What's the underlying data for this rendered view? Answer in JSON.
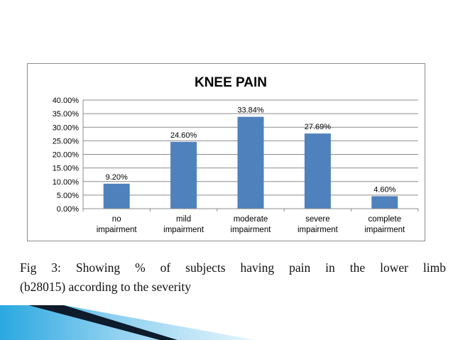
{
  "chart_data": {
    "type": "bar",
    "title": "KNEE PAIN",
    "categories": [
      [
        "no",
        "impairment"
      ],
      [
        "mild",
        "impairment"
      ],
      [
        "moderate",
        "impairment"
      ],
      [
        "severe",
        "impairment"
      ],
      [
        "complete",
        "impairment"
      ]
    ],
    "values": [
      9.2,
      24.6,
      33.84,
      27.69,
      4.6
    ],
    "data_labels": [
      "9.20%",
      "24.60%",
      "33.84%",
      "27.69%",
      "4.60%"
    ],
    "ylim": [
      0,
      40
    ],
    "yticks": [
      "0.00%",
      "5.00%",
      "10.00%",
      "15.00%",
      "20.00%",
      "25.00%",
      "30.00%",
      "35.00%",
      "40.00%"
    ],
    "grid": true,
    "legend": "none",
    "bar_color": "#4f81bd",
    "grid_color": "#8c8c8c"
  },
  "caption": {
    "line1": "Fig 3: Showing % of subjects having pain in the lower limb",
    "line2": "(b28015) according to the severity"
  },
  "decoration": {
    "accent_dark": "#0d1b2a",
    "accent_light": "#8fd0f0"
  }
}
